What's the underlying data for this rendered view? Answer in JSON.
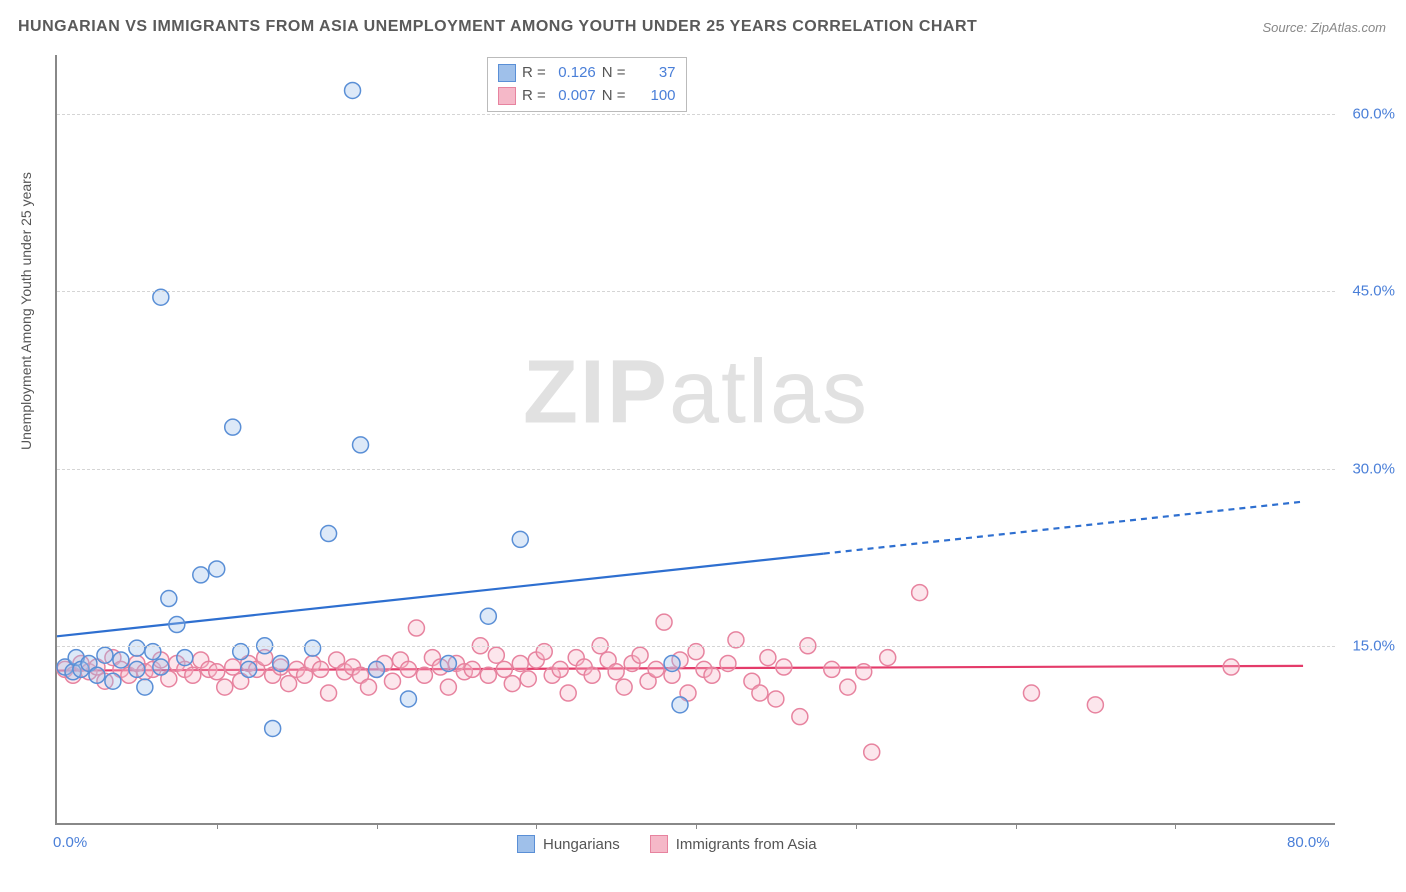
{
  "title": "HUNGARIAN VS IMMIGRANTS FROM ASIA UNEMPLOYMENT AMONG YOUTH UNDER 25 YEARS CORRELATION CHART",
  "source": "Source: ZipAtlas.com",
  "ylabel": "Unemployment Among Youth under 25 years",
  "watermark": {
    "prefix": "ZIP",
    "suffix": "atlas"
  },
  "chart": {
    "type": "scatter",
    "xlim": [
      0,
      80
    ],
    "ylim": [
      0,
      65
    ],
    "background_color": "#ffffff",
    "grid_color": "#d5d5d5",
    "axis_color": "#888888",
    "tick_color": "#4a7fd8",
    "tick_fontsize": 15,
    "yticks": [
      {
        "v": 15,
        "label": "15.0%"
      },
      {
        "v": 30,
        "label": "30.0%"
      },
      {
        "v": 45,
        "label": "45.0%"
      },
      {
        "v": 60,
        "label": "60.0%"
      }
    ],
    "xticks_label": [
      {
        "v": 0,
        "label": "0.0%"
      },
      {
        "v": 80,
        "label": "80.0%"
      }
    ],
    "xticks_minor": [
      10,
      20,
      30,
      40,
      50,
      60,
      70
    ],
    "marker_radius": 8,
    "series": [
      {
        "name": "Hungarians",
        "fill": "#9fc0ea",
        "stroke": "#5a8fd6",
        "R": "0.126",
        "N": "37",
        "trend": {
          "solid_x": [
            0,
            48
          ],
          "solid_y": [
            15.8,
            22.8
          ],
          "dash_x": [
            48,
            78
          ],
          "dash_y": [
            22.8,
            27.2
          ],
          "color": "#2e6fd0",
          "width": 2.2
        },
        "points": [
          [
            0.5,
            13.2
          ],
          [
            1.0,
            12.8
          ],
          [
            1.2,
            14.0
          ],
          [
            1.5,
            13.0
          ],
          [
            2.0,
            13.5
          ],
          [
            2.5,
            12.5
          ],
          [
            3.0,
            14.2
          ],
          [
            3.5,
            12.0
          ],
          [
            4.0,
            13.8
          ],
          [
            5.0,
            13.0
          ],
          [
            5.5,
            11.5
          ],
          [
            6.0,
            14.5
          ],
          [
            6.5,
            13.2
          ],
          [
            7.0,
            19.0
          ],
          [
            7.5,
            16.8
          ],
          [
            8.0,
            14.0
          ],
          [
            9.0,
            21.0
          ],
          [
            10.0,
            21.5
          ],
          [
            11.0,
            33.5
          ],
          [
            11.5,
            14.5
          ],
          [
            12.0,
            13.0
          ],
          [
            13.0,
            15.0
          ],
          [
            13.5,
            8.0
          ],
          [
            14.0,
            13.5
          ],
          [
            16.0,
            14.8
          ],
          [
            17.0,
            24.5
          ],
          [
            18.5,
            62.0
          ],
          [
            19.0,
            32.0
          ],
          [
            20.0,
            13.0
          ],
          [
            22.0,
            10.5
          ],
          [
            24.5,
            13.5
          ],
          [
            27.0,
            17.5
          ],
          [
            29.0,
            24.0
          ],
          [
            38.5,
            13.5
          ],
          [
            39.0,
            10.0
          ],
          [
            6.5,
            44.5
          ],
          [
            5.0,
            14.8
          ]
        ]
      },
      {
        "name": "Immigrants from Asia",
        "fill": "#f5b8c8",
        "stroke": "#e7839f",
        "R": "0.007",
        "N": "100",
        "trend": {
          "solid_x": [
            0,
            78
          ],
          "solid_y": [
            12.9,
            13.3
          ],
          "dash_x": [
            78,
            78
          ],
          "dash_y": [
            13.3,
            13.3
          ],
          "color": "#e43b6a",
          "width": 2.2
        },
        "points": [
          [
            0.5,
            13.0
          ],
          [
            1.0,
            12.5
          ],
          [
            1.5,
            13.5
          ],
          [
            2.0,
            12.8
          ],
          [
            2.5,
            13.2
          ],
          [
            3.0,
            12.0
          ],
          [
            3.5,
            14.0
          ],
          [
            4.0,
            13.0
          ],
          [
            4.5,
            12.5
          ],
          [
            5.0,
            13.5
          ],
          [
            5.5,
            12.8
          ],
          [
            6.0,
            13.0
          ],
          [
            6.5,
            13.8
          ],
          [
            7.0,
            12.2
          ],
          [
            7.5,
            13.5
          ],
          [
            8.0,
            13.0
          ],
          [
            8.5,
            12.5
          ],
          [
            9.0,
            13.8
          ],
          [
            9.5,
            13.0
          ],
          [
            10.0,
            12.8
          ],
          [
            10.5,
            11.5
          ],
          [
            11.0,
            13.2
          ],
          [
            11.5,
            12.0
          ],
          [
            12.0,
            13.5
          ],
          [
            12.5,
            13.0
          ],
          [
            13.0,
            14.0
          ],
          [
            13.5,
            12.5
          ],
          [
            14.0,
            13.2
          ],
          [
            14.5,
            11.8
          ],
          [
            15.0,
            13.0
          ],
          [
            15.5,
            12.5
          ],
          [
            16.0,
            13.5
          ],
          [
            16.5,
            13.0
          ],
          [
            17.0,
            11.0
          ],
          [
            17.5,
            13.8
          ],
          [
            18.0,
            12.8
          ],
          [
            18.5,
            13.2
          ],
          [
            19.0,
            12.5
          ],
          [
            19.5,
            11.5
          ],
          [
            20.0,
            13.0
          ],
          [
            20.5,
            13.5
          ],
          [
            21.0,
            12.0
          ],
          [
            21.5,
            13.8
          ],
          [
            22.0,
            13.0
          ],
          [
            22.5,
            16.5
          ],
          [
            23.0,
            12.5
          ],
          [
            23.5,
            14.0
          ],
          [
            24.0,
            13.2
          ],
          [
            24.5,
            11.5
          ],
          [
            25.0,
            13.5
          ],
          [
            25.5,
            12.8
          ],
          [
            26.0,
            13.0
          ],
          [
            26.5,
            15.0
          ],
          [
            27.0,
            12.5
          ],
          [
            27.5,
            14.2
          ],
          [
            28.0,
            13.0
          ],
          [
            28.5,
            11.8
          ],
          [
            29.0,
            13.5
          ],
          [
            29.5,
            12.2
          ],
          [
            30.0,
            13.8
          ],
          [
            30.5,
            14.5
          ],
          [
            31.0,
            12.5
          ],
          [
            31.5,
            13.0
          ],
          [
            32.0,
            11.0
          ],
          [
            32.5,
            14.0
          ],
          [
            33.0,
            13.2
          ],
          [
            33.5,
            12.5
          ],
          [
            34.0,
            15.0
          ],
          [
            34.5,
            13.8
          ],
          [
            35.0,
            12.8
          ],
          [
            35.5,
            11.5
          ],
          [
            36.0,
            13.5
          ],
          [
            36.5,
            14.2
          ],
          [
            37.0,
            12.0
          ],
          [
            37.5,
            13.0
          ],
          [
            38.0,
            17.0
          ],
          [
            38.5,
            12.5
          ],
          [
            39.0,
            13.8
          ],
          [
            39.5,
            11.0
          ],
          [
            40.0,
            14.5
          ],
          [
            40.5,
            13.0
          ],
          [
            41.0,
            12.5
          ],
          [
            42.0,
            13.5
          ],
          [
            42.5,
            15.5
          ],
          [
            43.5,
            12.0
          ],
          [
            44.0,
            11.0
          ],
          [
            44.5,
            14.0
          ],
          [
            45.0,
            10.5
          ],
          [
            45.5,
            13.2
          ],
          [
            46.5,
            9.0
          ],
          [
            47.0,
            15.0
          ],
          [
            48.5,
            13.0
          ],
          [
            49.5,
            11.5
          ],
          [
            50.5,
            12.8
          ],
          [
            51.0,
            6.0
          ],
          [
            52.0,
            14.0
          ],
          [
            54.0,
            19.5
          ],
          [
            61.0,
            11.0
          ],
          [
            65.0,
            10.0
          ],
          [
            73.5,
            13.2
          ]
        ]
      }
    ]
  },
  "legend_top": {
    "R_label": "R =",
    "N_label": "N ="
  },
  "legend_bottom_labels": [
    "Hungarians",
    "Immigrants from Asia"
  ]
}
